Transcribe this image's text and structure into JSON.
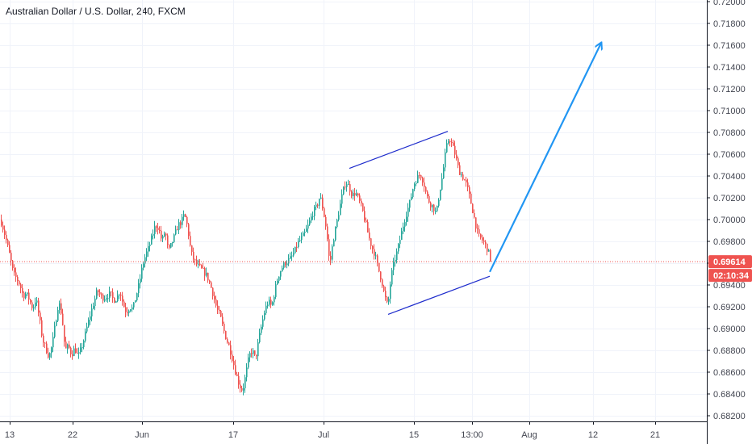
{
  "header": {
    "title": "Australian Dollar / U.S. Dollar, 240, FXCM"
  },
  "price_axis": {
    "ticks": [
      "0.72000",
      "0.71800",
      "0.71600",
      "0.71400",
      "0.71200",
      "0.71000",
      "0.70800",
      "0.70600",
      "0.70400",
      "0.70200",
      "0.70000",
      "0.69800",
      "0.69600",
      "0.69400",
      "0.69200",
      "0.69000",
      "0.68800",
      "0.68600",
      "0.68400",
      "0.68200"
    ],
    "current_price": "0.69614",
    "countdown": "02:10:34"
  },
  "time_axis": {
    "ticks": [
      "13",
      "22",
      "Jun",
      "17",
      "Jul",
      "15",
      "13:00",
      "Aug",
      "12",
      "21"
    ]
  },
  "colors": {
    "up": "#26a69a",
    "down": "#ef5350",
    "grid": "#f0f3fa",
    "channel": "#1e2ccc",
    "arrow": "#2196f3",
    "price_line": "#ef5350"
  },
  "chart_data": {
    "type": "candlestick",
    "title": "Australian Dollar / U.S. Dollar, 240, FXCM",
    "ylim": [
      0.6815,
      0.7205
    ],
    "y_ticks": [
      0.682,
      0.684,
      0.686,
      0.688,
      0.69,
      0.692,
      0.694,
      0.696,
      0.698,
      0.7,
      0.702,
      0.704,
      0.706,
      0.708,
      0.71,
      0.712,
      0.714,
      0.716,
      0.718,
      0.72
    ],
    "x_ticks": [
      "13",
      "22",
      "Jun",
      "17",
      "Jul",
      "15",
      "13:00",
      "Aug",
      "12",
      "21"
    ],
    "last_price": 0.69614,
    "close_path": [
      [
        0,
        0.7
      ],
      [
        4,
        0.699
      ],
      [
        8,
        0.6978
      ],
      [
        12,
        0.6965
      ],
      [
        16,
        0.695
      ],
      [
        20,
        0.6946
      ],
      [
        24,
        0.694
      ],
      [
        28,
        0.693
      ],
      [
        32,
        0.6932
      ],
      [
        36,
        0.6926
      ],
      [
        40,
        0.6918
      ],
      [
        44,
        0.6928
      ],
      [
        48,
        0.691
      ],
      [
        52,
        0.689
      ],
      [
        56,
        0.6882
      ],
      [
        60,
        0.6874
      ],
      [
        64,
        0.6885
      ],
      [
        68,
        0.6905
      ],
      [
        72,
        0.6925
      ],
      [
        76,
        0.6912
      ],
      [
        80,
        0.688
      ],
      [
        84,
        0.6884
      ],
      [
        88,
        0.6876
      ],
      [
        92,
        0.6882
      ],
      [
        96,
        0.6874
      ],
      [
        100,
        0.6882
      ],
      [
        104,
        0.6892
      ],
      [
        108,
        0.6904
      ],
      [
        112,
        0.6915
      ],
      [
        116,
        0.6925
      ],
      [
        120,
        0.6935
      ],
      [
        124,
        0.693
      ],
      [
        128,
        0.6928
      ],
      [
        132,
        0.693
      ],
      [
        136,
        0.6932
      ],
      [
        140,
        0.6926
      ],
      [
        144,
        0.6928
      ],
      [
        148,
        0.6935
      ],
      [
        152,
        0.6922
      ],
      [
        156,
        0.6915
      ],
      [
        160,
        0.692
      ],
      [
        164,
        0.6918
      ],
      [
        168,
        0.693
      ],
      [
        172,
        0.6942
      ],
      [
        176,
        0.6958
      ],
      [
        180,
        0.6968
      ],
      [
        184,
        0.6975
      ],
      [
        188,
        0.6985
      ],
      [
        192,
        0.6995
      ],
      [
        196,
        0.6992
      ],
      [
        200,
        0.698
      ],
      [
        204,
        0.699
      ],
      [
        208,
        0.697
      ],
      [
        212,
        0.6978
      ],
      [
        216,
        0.6986
      ],
      [
        220,
        0.6995
      ],
      [
        224,
        0.6998
      ],
      [
        228,
        0.7005
      ],
      [
        232,
        0.6992
      ],
      [
        236,
        0.697
      ],
      [
        240,
        0.6962
      ],
      [
        244,
        0.6958
      ],
      [
        248,
        0.6955
      ],
      [
        252,
        0.6952
      ],
      [
        256,
        0.6948
      ],
      [
        260,
        0.694
      ],
      [
        264,
        0.693
      ],
      [
        268,
        0.6918
      ],
      [
        272,
        0.6912
      ],
      [
        276,
        0.69
      ],
      [
        280,
        0.689
      ],
      [
        284,
        0.6882
      ],
      [
        288,
        0.687
      ],
      [
        292,
        0.6858
      ],
      [
        296,
        0.6848
      ],
      [
        300,
        0.6843
      ],
      [
        304,
        0.6858
      ],
      [
        308,
        0.6875
      ],
      [
        312,
        0.688
      ],
      [
        316,
        0.6872
      ],
      [
        320,
        0.689
      ],
      [
        324,
        0.6905
      ],
      [
        328,
        0.6918
      ],
      [
        332,
        0.6925
      ],
      [
        336,
        0.692
      ],
      [
        340,
        0.6935
      ],
      [
        344,
        0.6948
      ],
      [
        348,
        0.6955
      ],
      [
        352,
        0.696
      ],
      [
        356,
        0.6962
      ],
      [
        360,
        0.6965
      ],
      [
        364,
        0.697
      ],
      [
        368,
        0.6978
      ],
      [
        372,
        0.6982
      ],
      [
        376,
        0.6986
      ],
      [
        380,
        0.6992
      ],
      [
        384,
        0.7
      ],
      [
        388,
        0.7008
      ],
      [
        392,
        0.7012
      ],
      [
        396,
        0.7022
      ],
      [
        400,
        0.7008
      ],
      [
        404,
        0.699
      ],
      [
        408,
        0.6958
      ],
      [
        412,
        0.698
      ],
      [
        416,
        0.6995
      ],
      [
        420,
        0.701
      ],
      [
        424,
        0.7025
      ],
      [
        428,
        0.7035
      ],
      [
        432,
        0.703
      ],
      [
        436,
        0.7022
      ],
      [
        440,
        0.7025
      ],
      [
        444,
        0.7018
      ],
      [
        448,
        0.701
      ],
      [
        452,
        0.6998
      ],
      [
        456,
        0.6985
      ],
      [
        460,
        0.6975
      ],
      [
        464,
        0.6968
      ],
      [
        468,
        0.6955
      ],
      [
        472,
        0.6945
      ],
      [
        476,
        0.693
      ],
      [
        480,
        0.692
      ],
      [
        484,
        0.6948
      ],
      [
        488,
        0.6962
      ],
      [
        492,
        0.6972
      ],
      [
        496,
        0.6985
      ],
      [
        500,
        0.6998
      ],
      [
        504,
        0.7008
      ],
      [
        508,
        0.7018
      ],
      [
        512,
        0.7032
      ],
      [
        516,
        0.7038
      ],
      [
        520,
        0.7042
      ],
      [
        524,
        0.7035
      ],
      [
        528,
        0.7022
      ],
      [
        532,
        0.7015
      ],
      [
        536,
        0.7012
      ],
      [
        540,
        0.7005
      ],
      [
        544,
        0.7025
      ],
      [
        548,
        0.7042
      ],
      [
        552,
        0.7065
      ],
      [
        556,
        0.7075
      ],
      [
        560,
        0.7068
      ],
      [
        564,
        0.7058
      ],
      [
        568,
        0.7045
      ],
      [
        572,
        0.704
      ],
      [
        576,
        0.7035
      ],
      [
        580,
        0.7025
      ],
      [
        584,
        0.7012
      ],
      [
        588,
        0.6998
      ],
      [
        592,
        0.6985
      ],
      [
        596,
        0.6982
      ],
      [
        600,
        0.6978
      ],
      [
        604,
        0.6972
      ],
      [
        608,
        0.6961
      ]
    ],
    "annotations": [
      {
        "type": "line",
        "from": [
          "Jul 04",
          0.7047
        ],
        "to": [
          "Jul 19",
          0.7081
        ]
      },
      {
        "type": "line",
        "from": [
          "Jul 11",
          0.6913
        ],
        "to": [
          "Jul 24",
          0.6948
        ]
      },
      {
        "type": "arrow",
        "from": [
          "Jul 24",
          0.6952
        ],
        "to": [
          "Aug 13",
          0.7162
        ]
      }
    ]
  }
}
